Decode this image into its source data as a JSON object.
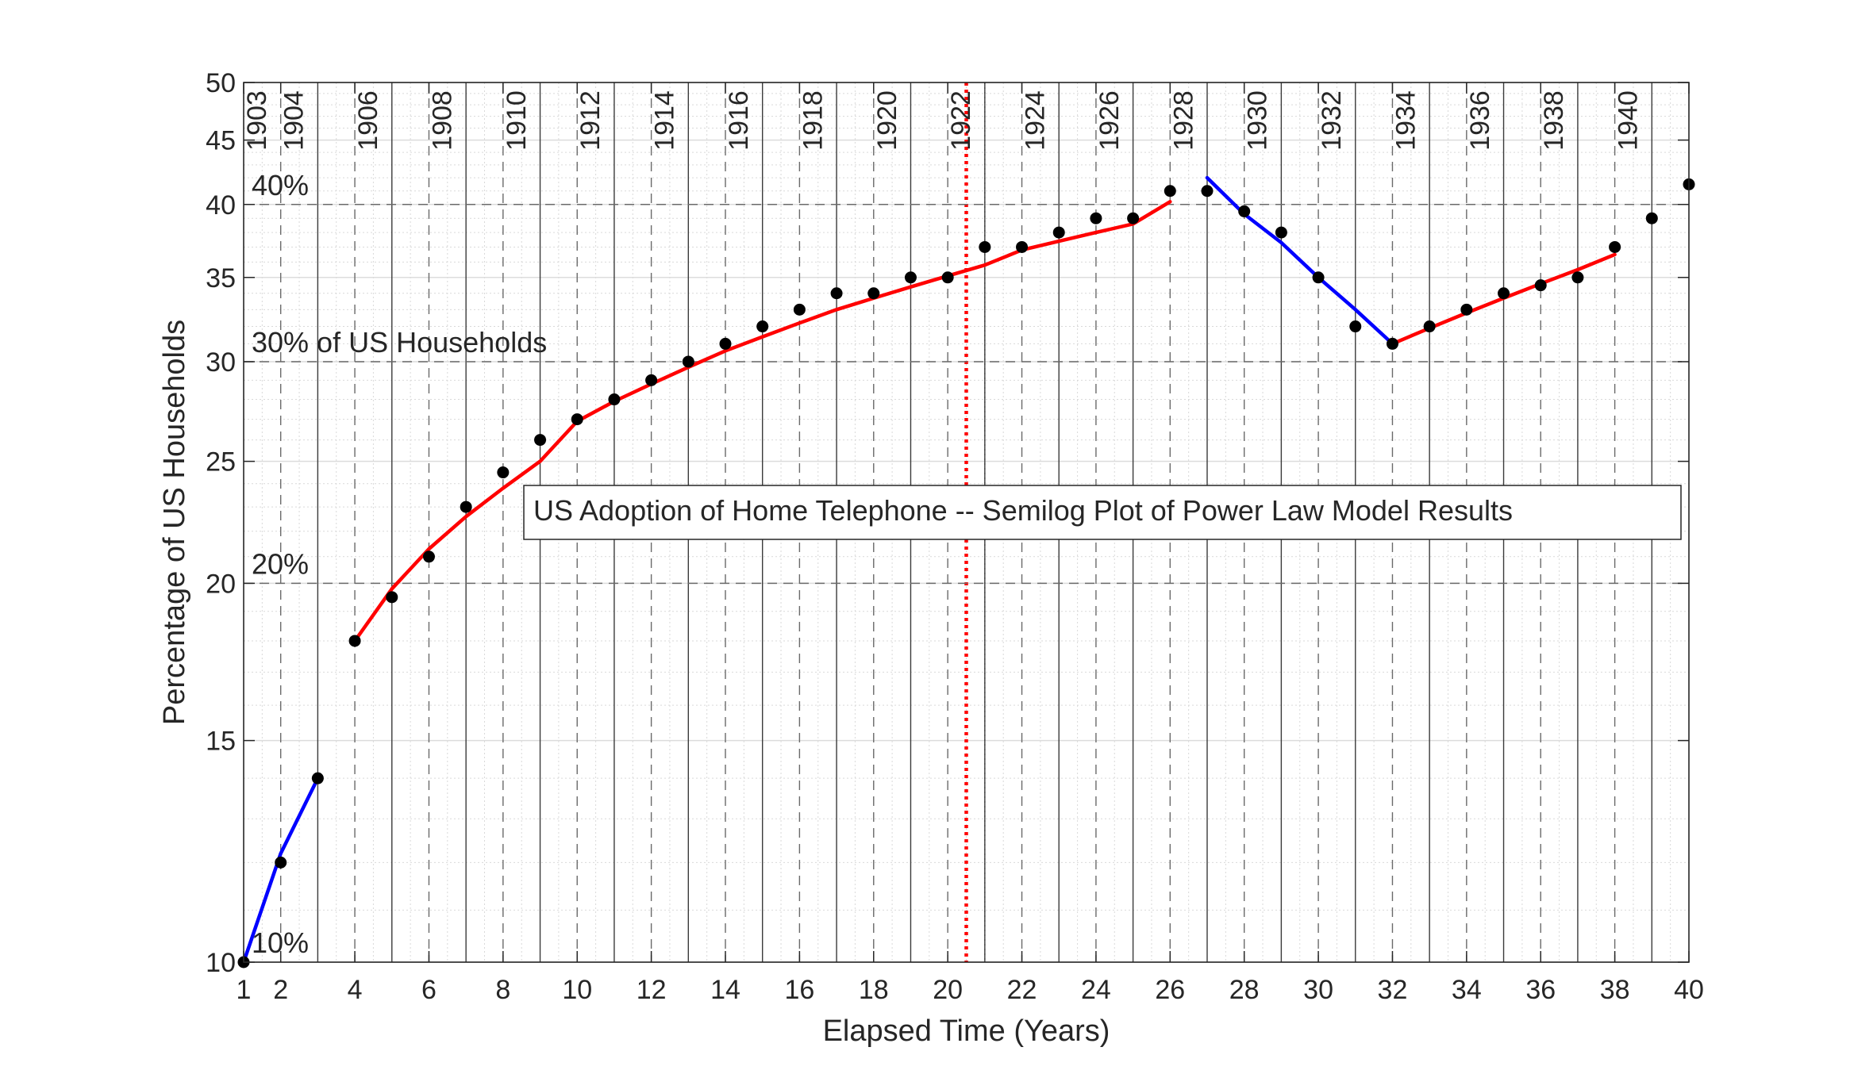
{
  "chart_data": {
    "type": "scatter",
    "title": "US Adoption of Home Telephone -- Semilog Plot of Power Law Model Results",
    "xlabel": "Elapsed Time (Years)",
    "ylabel": "Percentage of US Households",
    "xlim": [
      1,
      40
    ],
    "ylim": [
      10,
      50
    ],
    "yscale": "log",
    "xticks": [
      1,
      2,
      4,
      6,
      8,
      10,
      12,
      14,
      16,
      18,
      20,
      22,
      24,
      26,
      28,
      30,
      32,
      34,
      36,
      38,
      40
    ],
    "yticks": [
      10,
      15,
      20,
      25,
      30,
      35,
      40,
      45,
      50
    ],
    "grid": true,
    "year_labels": [
      {
        "x": 1,
        "label": "1903"
      },
      {
        "x": 2,
        "label": "1904"
      },
      {
        "x": 4,
        "label": "1906"
      },
      {
        "x": 6,
        "label": "1908"
      },
      {
        "x": 8,
        "label": "1910"
      },
      {
        "x": 10,
        "label": "1912"
      },
      {
        "x": 12,
        "label": "1914"
      },
      {
        "x": 14,
        "label": "1916"
      },
      {
        "x": 16,
        "label": "1918"
      },
      {
        "x": 18,
        "label": "1920"
      },
      {
        "x": 20,
        "label": "1922"
      },
      {
        "x": 22,
        "label": "1924"
      },
      {
        "x": 24,
        "label": "1926"
      },
      {
        "x": 26,
        "label": "1928"
      },
      {
        "x": 28,
        "label": "1930"
      },
      {
        "x": 30,
        "label": "1932"
      },
      {
        "x": 32,
        "label": "1934"
      },
      {
        "x": 34,
        "label": "1936"
      },
      {
        "x": 36,
        "label": "1938"
      },
      {
        "x": 38,
        "label": "1940"
      }
    ],
    "reference_lines": [
      {
        "y": 10,
        "label": "10%"
      },
      {
        "y": 20,
        "label": "20%"
      },
      {
        "y": 30,
        "label": "30% of US Households"
      },
      {
        "y": 40,
        "label": "40%"
      }
    ],
    "marker_line": {
      "x": 20.5,
      "color": "#ff0000",
      "style": "dotted"
    },
    "points": [
      {
        "x": 1,
        "y": 10.0
      },
      {
        "x": 2,
        "y": 12.0
      },
      {
        "x": 3,
        "y": 14.0
      },
      {
        "x": 4,
        "y": 18.0
      },
      {
        "x": 5,
        "y": 19.5
      },
      {
        "x": 6,
        "y": 21.0
      },
      {
        "x": 7,
        "y": 23.0
      },
      {
        "x": 8,
        "y": 24.5
      },
      {
        "x": 9,
        "y": 26.0
      },
      {
        "x": 10,
        "y": 27.0
      },
      {
        "x": 11,
        "y": 28.0
      },
      {
        "x": 12,
        "y": 29.0
      },
      {
        "x": 13,
        "y": 30.0
      },
      {
        "x": 14,
        "y": 31.0
      },
      {
        "x": 15,
        "y": 32.0
      },
      {
        "x": 16,
        "y": 33.0
      },
      {
        "x": 17,
        "y": 34.0
      },
      {
        "x": 18,
        "y": 34.0
      },
      {
        "x": 19,
        "y": 35.0
      },
      {
        "x": 20,
        "y": 35.0
      },
      {
        "x": 21,
        "y": 37.0
      },
      {
        "x": 22,
        "y": 37.0
      },
      {
        "x": 23,
        "y": 38.0
      },
      {
        "x": 24,
        "y": 39.0
      },
      {
        "x": 25,
        "y": 39.0
      },
      {
        "x": 26,
        "y": 41.0
      },
      {
        "x": 27,
        "y": 41.0
      },
      {
        "x": 28,
        "y": 39.5
      },
      {
        "x": 29,
        "y": 38.0
      },
      {
        "x": 30,
        "y": 35.0
      },
      {
        "x": 31,
        "y": 32.0
      },
      {
        "x": 32,
        "y": 31.0
      },
      {
        "x": 33,
        "y": 32.0
      },
      {
        "x": 34,
        "y": 33.0
      },
      {
        "x": 35,
        "y": 34.0
      },
      {
        "x": 36,
        "y": 34.5
      },
      {
        "x": 37,
        "y": 35.0
      },
      {
        "x": 38,
        "y": 37.0
      },
      {
        "x": 39,
        "y": 39.0
      },
      {
        "x": 40,
        "y": 41.5
      }
    ],
    "fits": [
      {
        "color": "#0000ff",
        "points": [
          [
            1,
            10.0
          ],
          [
            2,
            12.2
          ],
          [
            3,
            14.0
          ]
        ]
      },
      {
        "color": "#ff0000",
        "points": [
          [
            4,
            18.0
          ],
          [
            5,
            19.8
          ],
          [
            6,
            21.3
          ],
          [
            7,
            22.6
          ],
          [
            8,
            23.8
          ],
          [
            9,
            25.0
          ],
          [
            10,
            26.9
          ],
          [
            11,
            27.9
          ],
          [
            12,
            28.8
          ],
          [
            13,
            29.7
          ],
          [
            14,
            30.6
          ],
          [
            15,
            31.4
          ],
          [
            16,
            32.2
          ],
          [
            17,
            33.0
          ],
          [
            18,
            33.7
          ],
          [
            19,
            34.4
          ],
          [
            20,
            35.1
          ],
          [
            21,
            35.8
          ],
          [
            22,
            36.8
          ],
          [
            23,
            37.4
          ],
          [
            24,
            38.0
          ],
          [
            25,
            38.6
          ],
          [
            26,
            40.2
          ]
        ]
      },
      {
        "color": "#0000ff",
        "points": [
          [
            27,
            42.0
          ],
          [
            28,
            39.3
          ],
          [
            29,
            37.3
          ],
          [
            30,
            35.0
          ],
          [
            31,
            33.0
          ],
          [
            32,
            31.0
          ]
        ]
      },
      {
        "color": "#ff0000",
        "points": [
          [
            32,
            31.0
          ],
          [
            33,
            31.9
          ],
          [
            34,
            32.8
          ],
          [
            35,
            33.7
          ],
          [
            36,
            34.6
          ],
          [
            37,
            35.5
          ],
          [
            38,
            36.5
          ]
        ]
      }
    ]
  }
}
